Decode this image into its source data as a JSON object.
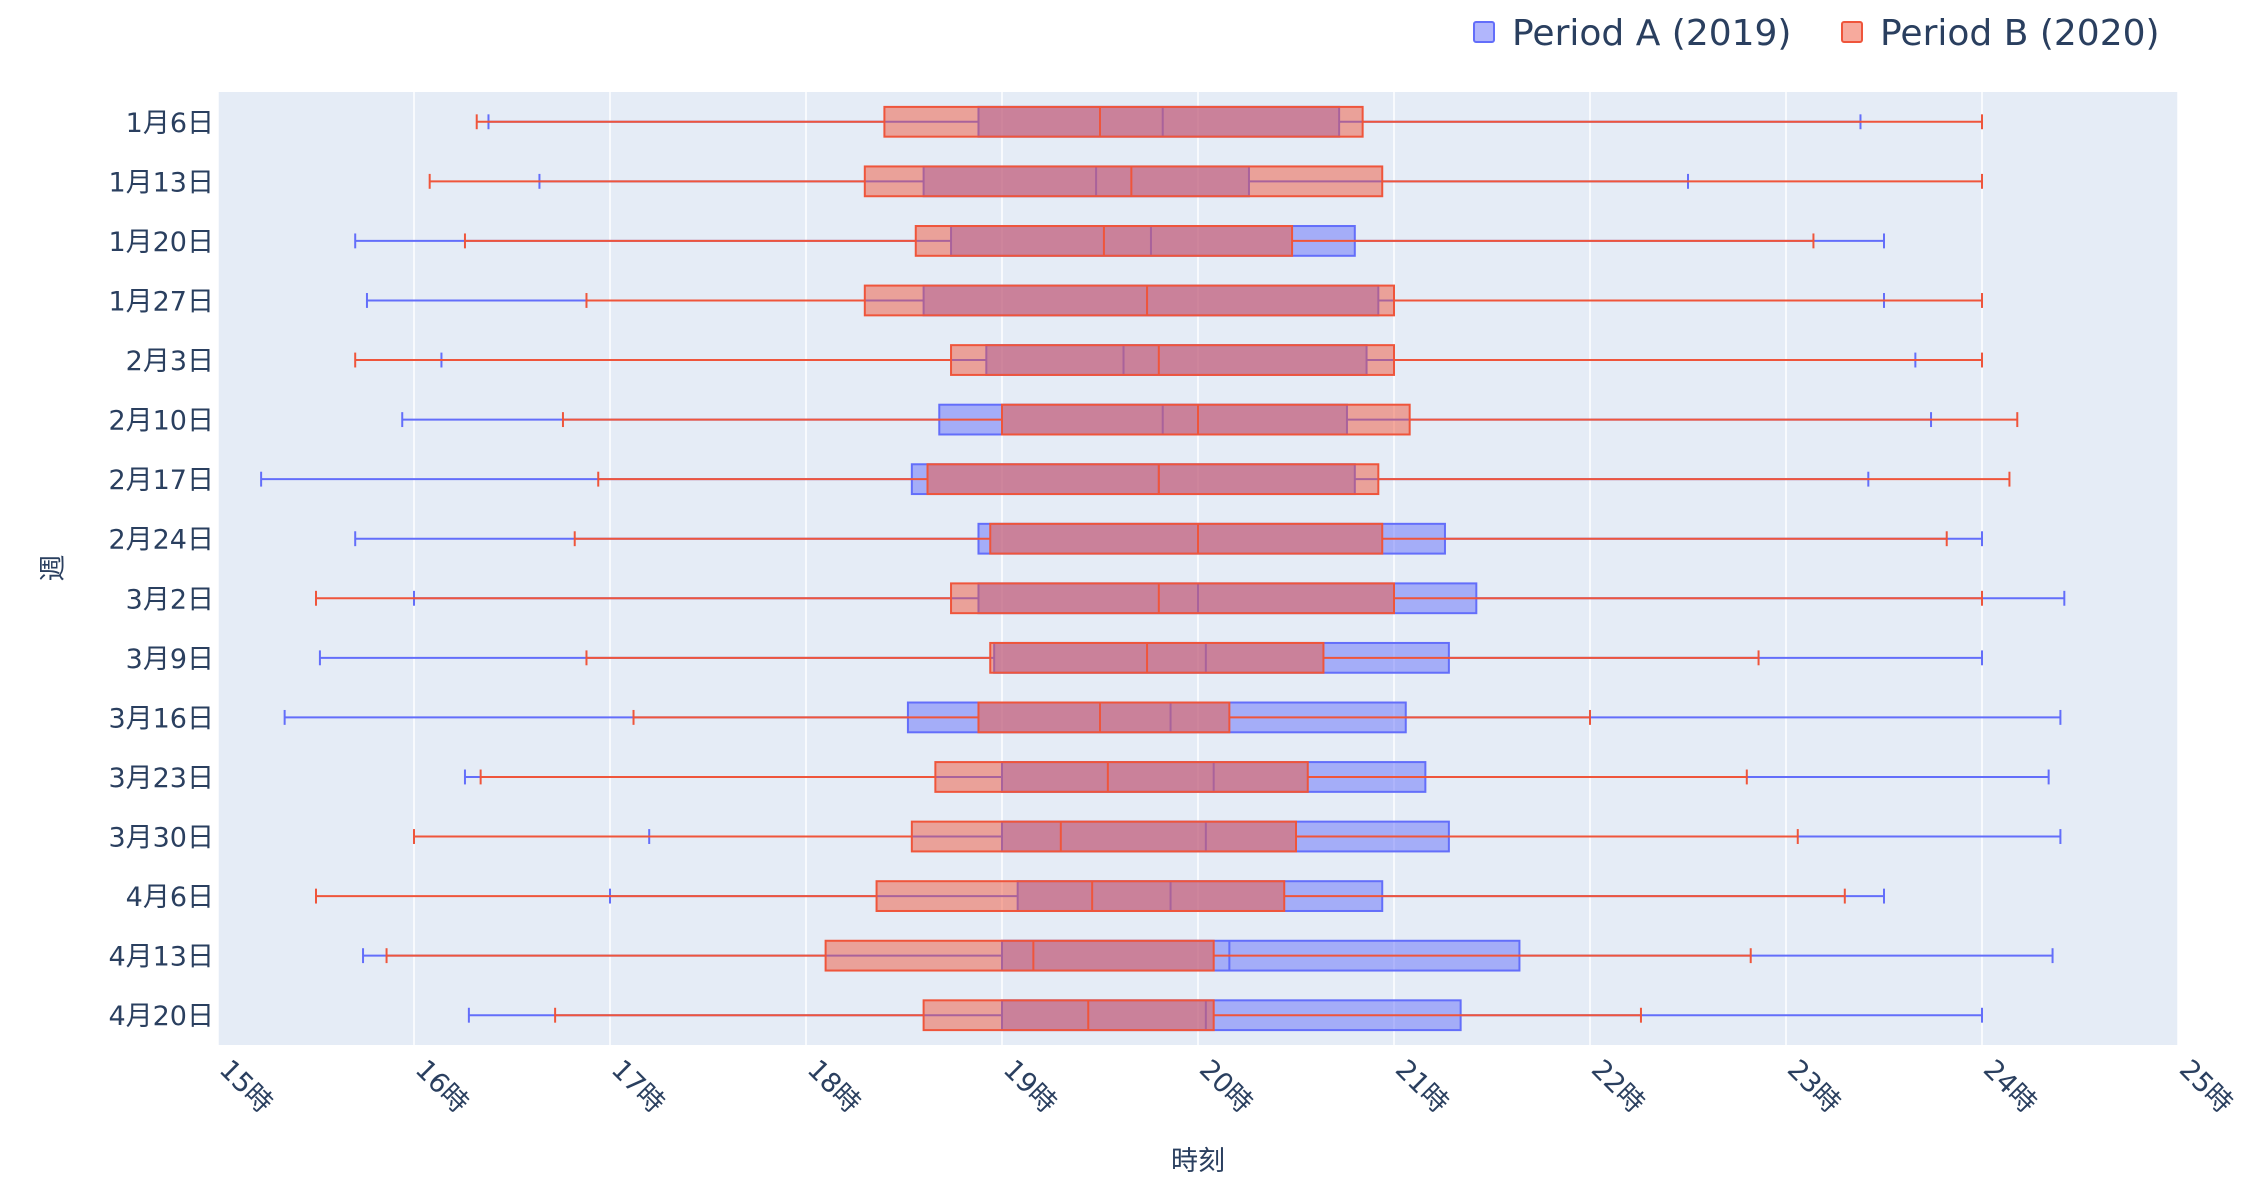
{
  "chart_data": {
    "type": "box",
    "orientation": "horizontal",
    "title": "",
    "xlabel": "時刻",
    "ylabel": "週",
    "xlim": [
      15,
      25
    ],
    "x_ticks": [
      15,
      16,
      17,
      18,
      19,
      20,
      21,
      22,
      23,
      24,
      25
    ],
    "x_tick_labels": [
      "15時",
      "16時",
      "17時",
      "18時",
      "19時",
      "20時",
      "21時",
      "22時",
      "23時",
      "24時",
      "25時"
    ],
    "grid": true,
    "legend_position": "top-right",
    "categories": [
      "1月6日",
      "1月13日",
      "1月20日",
      "1月27日",
      "2月3日",
      "2月10日",
      "2月17日",
      "2月24日",
      "3月2日",
      "3月9日",
      "3月16日",
      "3月23日",
      "3月30日",
      "4月6日",
      "4月13日",
      "4月20日"
    ],
    "series": [
      {
        "name": "Period A (2019)",
        "color": "#636efa",
        "boxes": [
          {
            "min": 16.38,
            "q1": 18.88,
            "median": 19.82,
            "q3": 20.72,
            "max": 23.38
          },
          {
            "min": 16.64,
            "q1": 18.6,
            "median": 19.48,
            "q3": 20.26,
            "max": 22.5
          },
          {
            "min": 15.7,
            "q1": 18.74,
            "median": 19.76,
            "q3": 20.8,
            "max": 23.5
          },
          {
            "min": 15.76,
            "q1": 18.6,
            "median": 19.74,
            "q3": 20.92,
            "max": 23.5
          },
          {
            "min": 16.14,
            "q1": 18.92,
            "median": 19.62,
            "q3": 20.86,
            "max": 23.66
          },
          {
            "min": 15.94,
            "q1": 18.68,
            "median": 19.82,
            "q3": 20.76,
            "max": 23.74
          },
          {
            "min": 15.22,
            "q1": 18.54,
            "median": 19.8,
            "q3": 20.8,
            "max": 23.42
          },
          {
            "min": 15.7,
            "q1": 18.88,
            "median": 20.0,
            "q3": 21.26,
            "max": 24.0
          },
          {
            "min": 16.0,
            "q1": 18.88,
            "median": 20.0,
            "q3": 21.42,
            "max": 24.42
          },
          {
            "min": 15.52,
            "q1": 18.96,
            "median": 20.04,
            "q3": 21.28,
            "max": 24.0
          },
          {
            "min": 15.34,
            "q1": 18.52,
            "median": 19.86,
            "q3": 21.06,
            "max": 24.4
          },
          {
            "min": 16.26,
            "q1": 19.0,
            "median": 20.08,
            "q3": 21.16,
            "max": 24.34
          },
          {
            "min": 17.2,
            "q1": 19.0,
            "median": 20.04,
            "q3": 21.28,
            "max": 24.4
          },
          {
            "min": 17.0,
            "q1": 19.08,
            "median": 19.86,
            "q3": 20.94,
            "max": 23.5
          },
          {
            "min": 15.74,
            "q1": 19.0,
            "median": 20.16,
            "q3": 21.64,
            "max": 24.36
          },
          {
            "min": 16.28,
            "q1": 19.0,
            "median": 20.04,
            "q3": 21.34,
            "max": 24.0
          }
        ]
      },
      {
        "name": "Period B (2020)",
        "color": "#ef553b",
        "boxes": [
          {
            "min": 16.32,
            "q1": 18.4,
            "median": 19.5,
            "q3": 20.84,
            "max": 24.0
          },
          {
            "min": 16.08,
            "q1": 18.3,
            "median": 19.66,
            "q3": 20.94,
            "max": 24.0
          },
          {
            "min": 16.26,
            "q1": 18.56,
            "median": 19.52,
            "q3": 20.48,
            "max": 23.14
          },
          {
            "min": 16.88,
            "q1": 18.3,
            "median": 19.74,
            "q3": 21.0,
            "max": 24.0
          },
          {
            "min": 15.7,
            "q1": 18.74,
            "median": 19.8,
            "q3": 21.0,
            "max": 24.0
          },
          {
            "min": 16.76,
            "q1": 19.0,
            "median": 20.0,
            "q3": 21.08,
            "max": 24.18
          },
          {
            "min": 16.94,
            "q1": 18.62,
            "median": 19.8,
            "q3": 20.92,
            "max": 24.14
          },
          {
            "min": 16.82,
            "q1": 18.94,
            "median": 20.0,
            "q3": 20.94,
            "max": 23.82
          },
          {
            "min": 15.5,
            "q1": 18.74,
            "median": 19.8,
            "q3": 21.0,
            "max": 24.0
          },
          {
            "min": 16.88,
            "q1": 18.94,
            "median": 19.74,
            "q3": 20.64,
            "max": 22.86
          },
          {
            "min": 17.12,
            "q1": 18.88,
            "median": 19.5,
            "q3": 20.16,
            "max": 22.0
          },
          {
            "min": 16.34,
            "q1": 18.66,
            "median": 19.54,
            "q3": 20.56,
            "max": 22.8
          },
          {
            "min": 16.0,
            "q1": 18.54,
            "median": 19.3,
            "q3": 20.5,
            "max": 23.06
          },
          {
            "min": 15.5,
            "q1": 18.36,
            "median": 19.46,
            "q3": 20.44,
            "max": 23.3
          },
          {
            "min": 15.86,
            "q1": 18.1,
            "median": 19.16,
            "q3": 20.08,
            "max": 22.82
          },
          {
            "min": 16.72,
            "q1": 18.6,
            "median": 19.44,
            "q3": 20.08,
            "max": 22.26
          }
        ]
      }
    ]
  }
}
